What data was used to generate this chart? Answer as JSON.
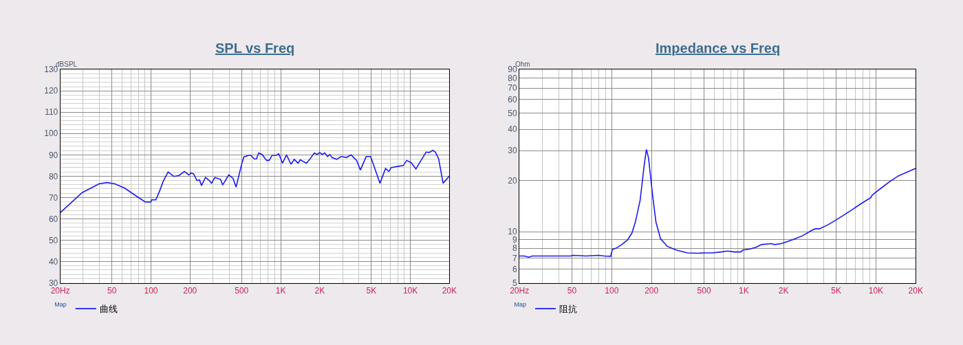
{
  "chart_data": [
    {
      "type": "line",
      "title": "SPL vs Freq",
      "ylabel": "dBSPL",
      "log": "x",
      "grid": true,
      "legend": "bottom",
      "legend_title": "Map",
      "marker": "none",
      "line_style": "solid",
      "xlim": [
        20,
        20000
      ],
      "xticks": [
        {
          "value": 20,
          "label": "20Hz"
        },
        50,
        100,
        200,
        500,
        {
          "value": 1000,
          "label": "1K"
        },
        {
          "value": 2000,
          "label": "2K"
        },
        {
          "value": 5000,
          "label": "5K"
        },
        {
          "value": 10000,
          "label": "10K"
        },
        {
          "value": 20000,
          "label": "20K"
        }
      ],
      "ylim": [
        30,
        130
      ],
      "yticks": [
        30,
        40,
        50,
        60,
        70,
        80,
        90,
        100,
        110,
        120,
        130
      ],
      "series": [
        {
          "name": "曲线",
          "color": "#1a1aee",
          "x": [
            20,
            29.5,
            39.8,
            45.7,
            52.6,
            62.7,
            77,
            90.5,
            99.6,
            101.6,
            109,
            117,
            124,
            135.5,
            150,
            164,
            181,
            196,
            204,
            213,
            226,
            237,
            245,
            263,
            281,
            293,
            311,
            344,
            357,
            398,
            429,
            453,
            501,
            520,
            567,
            588,
            625,
            650,
            677,
            718,
            778,
            816,
            859,
            929,
            966,
            1033,
            1109,
            1200,
            1273,
            1361,
            1416,
            1581,
            1677,
            1815,
            1911,
            2004,
            2086,
            2186,
            2300,
            2393,
            2490,
            2697,
            2920,
            3224,
            3489,
            3851,
            4119,
            4561,
            4937,
            5384,
            5829,
            6432,
            6823,
            7097,
            7990,
            8823,
            9358,
            10120,
            11035,
            12080,
            13220,
            13970,
            14880,
            15590,
            16520,
            17870,
            20000
          ],
          "values": [
            62.9,
            72.3,
            76.4,
            77.0,
            76.4,
            74.4,
            70.7,
            67.9,
            67.9,
            68.9,
            68.9,
            73.3,
            77.5,
            82.0,
            79.9,
            80.3,
            82.2,
            80.6,
            81.5,
            81.1,
            78.0,
            78.2,
            75.6,
            79.4,
            78.0,
            76.7,
            79.4,
            78.5,
            75.9,
            80.6,
            79.0,
            74.9,
            85.8,
            89.0,
            89.8,
            89.8,
            88.1,
            88.1,
            90.9,
            90.2,
            87.4,
            87.4,
            89.8,
            89.8,
            90.5,
            86.1,
            90.0,
            85.6,
            87.9,
            86.1,
            87.7,
            86.1,
            87.9,
            90.9,
            90.2,
            91.1,
            90.2,
            90.9,
            89.2,
            90.2,
            88.7,
            87.9,
            89.2,
            88.8,
            90.0,
            87.4,
            82.9,
            89.2,
            89.2,
            82.7,
            76.7,
            83.6,
            82.2,
            84.0,
            84.6,
            85.0,
            87.4,
            86.4,
            83.4,
            87.4,
            91.3,
            91.1,
            92.1,
            91.3,
            88.1,
            76.7,
            80.1
          ]
        }
      ]
    },
    {
      "type": "line",
      "title": "Impedance vs Freq",
      "ylabel": "Ohm",
      "log": "xy",
      "grid": true,
      "legend": "bottom",
      "legend_title": "Map",
      "marker": "none",
      "line_style": "solid",
      "xlim": [
        20,
        20000
      ],
      "xticks": [
        {
          "value": 20,
          "label": "20Hz"
        },
        50,
        100,
        200,
        500,
        {
          "value": 1000,
          "label": "1K"
        },
        {
          "value": 2000,
          "label": "2K"
        },
        {
          "value": 5000,
          "label": "5K"
        },
        {
          "value": 10000,
          "label": "10K"
        },
        {
          "value": 20000,
          "label": "20K"
        }
      ],
      "ylim": [
        5,
        90
      ],
      "yticks": [
        5,
        6,
        7,
        8,
        9,
        10,
        20,
        30,
        40,
        50,
        60,
        70,
        80,
        90
      ],
      "series": [
        {
          "name": "阻抗",
          "color": "#1a1aee",
          "x": [
            20,
            21.8,
            23.6,
            25,
            48.9,
            50.8,
            64.2,
            79.6,
            87.8,
            98.2,
            101.1,
            108,
            119,
            131,
            142,
            151,
            164,
            177,
            183,
            190,
            204,
            216,
            234,
            263,
            307,
            373,
            453,
            508,
            577,
            672,
            754,
            845,
            948,
            985,
            1104,
            1238,
            1362,
            1617,
            1712,
            1920,
            2191,
            2457,
            2809,
            3210,
            3467,
            3740,
            4356,
            4886,
            5692,
            6635,
            7580,
            9170,
            9352,
            10900,
            12690,
            14800,
            20000
          ],
          "values": [
            7.19,
            7.19,
            7.08,
            7.19,
            7.19,
            7.26,
            7.19,
            7.26,
            7.19,
            7.17,
            7.86,
            8.0,
            8.4,
            8.9,
            9.8,
            11.4,
            15.3,
            25.5,
            30.5,
            27.1,
            16.3,
            11.4,
            9.1,
            8.2,
            7.8,
            7.5,
            7.47,
            7.5,
            7.5,
            7.6,
            7.7,
            7.6,
            7.6,
            7.8,
            7.9,
            8.1,
            8.4,
            8.5,
            8.4,
            8.5,
            8.8,
            9.1,
            9.5,
            10.1,
            10.4,
            10.4,
            11.0,
            11.6,
            12.5,
            13.5,
            14.5,
            15.9,
            16.4,
            18.0,
            19.7,
            21.3,
            23.6
          ]
        }
      ]
    }
  ]
}
